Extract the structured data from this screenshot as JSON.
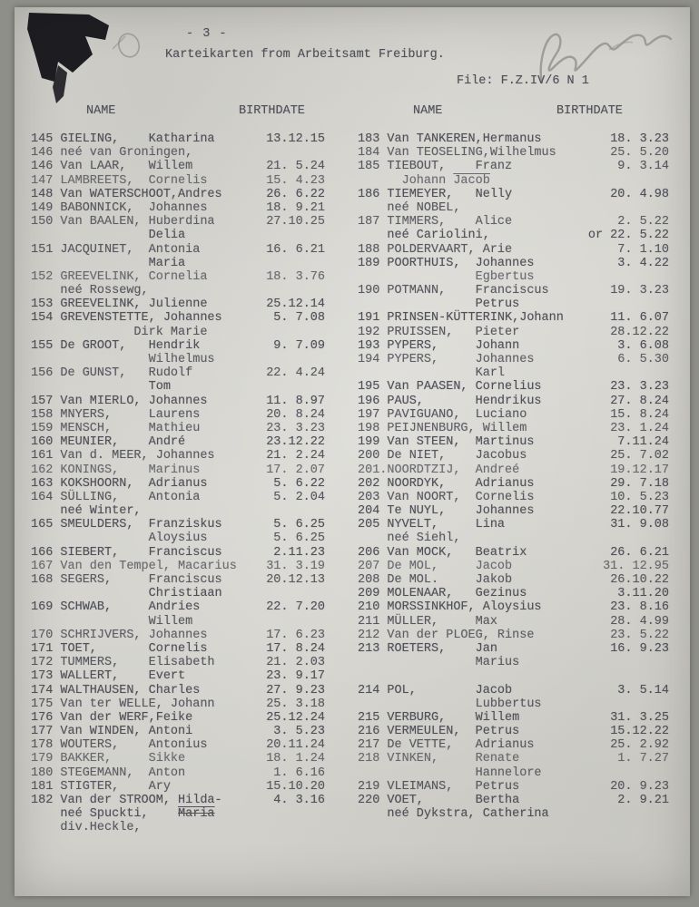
{
  "page": {
    "page_number": "- 3 -",
    "title": "Karteikarten from Arbeitsamt Freiburg.",
    "file_reference": "File: F.Z.IV/6  N 1"
  },
  "annotations": {
    "ink_stain": "black ink stain on torn top-left corner",
    "pencil_scribble": "small pencil loop beside stain",
    "handwritten_mark": "illegible pencil signature top right"
  },
  "table": {
    "headers": [
      "NAME",
      "BIRTHDATE",
      "NAME",
      "BIRTHDATE"
    ],
    "left_column": [
      {
        "t": "145 GIELING,    Katharina",
        "d": "13.12.15"
      },
      {
        "t": "146 neé van Groningen,"
      },
      {
        "t": "146 Van LAAR,   Willem",
        "d": "21. 5.24"
      },
      {
        "t": "147 LAMBREETS,  Cornelis",
        "d": "15. 4.23"
      },
      {
        "t": "148 Van WATERSCHOOT,Andres",
        "d": "26. 6.22"
      },
      {
        "t": "149 BABONNICK,  Johannes",
        "d": "18. 9.21"
      },
      {
        "t": "150 Van BAALEN, Huberdina",
        "d": "27.10.25"
      },
      {
        "t": "                Delia"
      },
      {
        "t": "151 JACQUINET,  Antonia",
        "d": "16. 6.21"
      },
      {
        "t": "                Maria"
      },
      {
        "t": "152 GREEVELINK, Cornelia",
        "d": "18. 3.76"
      },
      {
        "t": "    neé Rossewg,"
      },
      {
        "t": "153 GREEVELINK, Julienne",
        "d": "25.12.14"
      },
      {
        "t": "154 GREVENSTETTE, Johannes",
        "d": "5. 7.08"
      },
      {
        "t": "              Dirk Marie"
      },
      {
        "t": "155 De GROOT,   Hendrik",
        "d": "9. 7.09"
      },
      {
        "t": "                Wilhelmus"
      },
      {
        "t": "156 De GUNST,   Rudolf",
        "d": "22. 4.24"
      },
      {
        "t": "                Tom"
      },
      {
        "t": "157 Van MIERLO, Johannes",
        "d": "11. 8.97"
      },
      {
        "t": "158 MNYERS,     Laurens",
        "d": "20. 8.24"
      },
      {
        "t": "159 MENSCH,     Mathieu",
        "d": "23. 3.23"
      },
      {
        "t": "160 MEUNIER,    André",
        "d": "23.12.22"
      },
      {
        "t": "161 Van d. MEER, Johannes",
        "d": "21. 2.24"
      },
      {
        "t": "162 KONINGS,    Marinus",
        "d": "17. 2.07"
      },
      {
        "t": "163 KOKSHOORN,  Adrianus",
        "d": "5. 6.22"
      },
      {
        "t": "164 SÜLLING,    Antonia",
        "d": "5. 2.04"
      },
      {
        "t": "    neé Winter,"
      },
      {
        "t": "165 SMEULDERS,  Franziskus",
        "d": "5. 6.25"
      },
      {
        "t": "                Aloysius",
        "d": "5. 6.25"
      },
      {
        "t": "166 SIEBERT,    Franciscus",
        "d": "2.11.23"
      },
      {
        "t": "167 Van den Tempel, Macarius",
        "d": "31. 3.19"
      },
      {
        "t": "168 SEGERS,     Franciscus",
        "d": "20.12.13"
      },
      {
        "t": "                Christiaan"
      },
      {
        "t": "169 SCHWAB,     Andries",
        "d": "22. 7.20"
      },
      {
        "t": "                Willem"
      },
      {
        "t": "170 SCHRIJVERS, Johannes",
        "d": "17. 6.23"
      },
      {
        "t": "171 TOET,       Cornelis",
        "d": "17. 8.24"
      },
      {
        "t": "172 TUMMERS,    Elisabeth",
        "d": "21. 2.03"
      },
      {
        "t": "173 WALLERT,    Evert",
        "d": "23. 9.17"
      },
      {
        "t": "174 WALTHAUSEN, Charles",
        "d": "27. 9.23"
      },
      {
        "t": "175 Van ter WELLE, Johann",
        "d": "25. 3.18"
      },
      {
        "t": "176 Van der WERF,Feike",
        "d": "25.12.24"
      },
      {
        "t": "177 Van WINDEN, Antoni",
        "d": "3. 5.23"
      },
      {
        "t": "178 WOUTERS,    Antonius",
        "d": "20.11.24"
      },
      {
        "t": "179 BAKKER,     Sikke",
        "d": "18. 1.24"
      },
      {
        "t": "180 STEGEMANN,  Anton",
        "d": "1. 6.16"
      },
      {
        "t": "181 STIGTER,    Ary",
        "d": "15.10.20"
      },
      {
        "t": "182 Van der STROOM, Hilda-",
        "d": "4. 3.16"
      },
      {
        "t": "    neé Spuckti,    ",
        "parts": [
          [
            "    neé Spuckti,    ",
            ""
          ],
          [
            "Maria",
            "struck"
          ]
        ]
      },
      {
        "t": "    div.Heckle,"
      }
    ],
    "right_column": [
      {
        "t": "183 Van TANKEREN,Hermanus",
        "d": "18. 3.23"
      },
      {
        "t": "184 Van TEOSELING,Wilhelmus",
        "d": "25. 5.20"
      },
      {
        "t": "185 TIEBOUT,    Franz",
        "d": "9. 3.14"
      },
      {
        "t": "      Johann Jacob",
        "parts": [
          [
            "      Johann ",
            ""
          ],
          [
            "Jacob",
            "overlined"
          ]
        ]
      },
      {
        "t": "186 TIEMEYER,   Nelly",
        "d": "20. 4.98"
      },
      {
        "t": "    neé NOBEL,"
      },
      {
        "t": "187 TIMMERS,    Alice",
        "d": "2. 5.22"
      },
      {
        "t": "    neé Cariolini,",
        "d": "or 22. 5.22"
      },
      {
        "t": "188 POLDERVAART, Arie",
        "d": "7. 1.10"
      },
      {
        "t": "189 POORTHUIS,  Johannes",
        "d": "3. 4.22"
      },
      {
        "t": "                Egbertus"
      },
      {
        "t": "190 POTMANN,    Franciscus",
        "d": "19. 3.23"
      },
      {
        "t": "                Petrus"
      },
      {
        "t": "191 PRINSEN-KÜTTERINK,Johann",
        "d": "11. 6.07"
      },
      {
        "t": "192 PRUISSEN,   Pieter",
        "d": "28.12.22"
      },
      {
        "t": "193 PYPERS,     Johann",
        "d": "3. 6.08"
      },
      {
        "t": "194 PYPERS,     Johannes",
        "d": "6. 5.30"
      },
      {
        "t": "                Karl"
      },
      {
        "t": "195 Van PAASEN, Cornelius",
        "d": "23. 3.23"
      },
      {
        "t": "196 PAUS,       Hendrikus",
        "d": "27. 8.24"
      },
      {
        "t": "197 PAVIGUANO,  Luciano",
        "d": "15. 8.24"
      },
      {
        "t": "198 PEIJNENBURG, Willem",
        "d": "23. 1.24"
      },
      {
        "t": "199 Van STEEN,  Martinus",
        "d": "7.11.24"
      },
      {
        "t": "200 De NIET,    Jacobus",
        "d": "25. 7.02"
      },
      {
        "t": "201.NOORDTZIJ,  Andreé",
        "d": "19.12.17"
      },
      {
        "t": "202 NOORDYK,    Adrianus",
        "d": "29. 7.18"
      },
      {
        "t": "203 Van NOORT,  Cornelis",
        "d": "10. 5.23"
      },
      {
        "t": "204 Te NUYL,    Johannes",
        "d": "22.10.77"
      },
      {
        "t": "205 NYVELT,     Lina",
        "d": "31. 9.08"
      },
      {
        "t": "    neé Siehl,"
      },
      {
        "t": "206 Van MOCK,   Beatrix",
        "d": "26. 6.21"
      },
      {
        "t": "207 De MOL,     Jacob",
        "d": "31. 12.95"
      },
      {
        "t": "208 De MOL.     Jakob",
        "d": "26.10.22"
      },
      {
        "t": "209 MOLENAAR,   Gezinus",
        "d": "3.11.20"
      },
      {
        "t": "210 MORSSINKHOF, Aloysius",
        "d": "23. 8.16"
      },
      {
        "t": "211 MÜLLER,     Max",
        "d": "28. 4.99"
      },
      {
        "t": "212 Van der PLOEG, Rinse",
        "d": "23. 5.22"
      },
      {
        "t": "213 ROETERS,    Jan",
        "d": "16. 9.23"
      },
      {
        "t": "                Marius"
      },
      {
        "blank": true
      },
      {
        "t": "214 POL,        Jacob",
        "d": "3. 5.14"
      },
      {
        "t": "                Lubbertus"
      },
      {
        "t": "215 VERBURG,    Willem",
        "d": "31. 3.25"
      },
      {
        "t": "216 VERMEULEN,  Petrus",
        "d": "15.12.22"
      },
      {
        "t": "217 De VETTE,   Adrianus",
        "d": "25. 2.92"
      },
      {
        "t": "218 VINKEN,     Renate",
        "d": "1. 7.27"
      },
      {
        "t": "                Hannelore"
      },
      {
        "t": "219 VLEIMANS,   Petrus",
        "d": "20. 9.23"
      },
      {
        "t": "220 VOET,       Bertha",
        "d": "2. 9.21"
      },
      {
        "t": "    neé Dykstra, Catherina"
      }
    ]
  }
}
